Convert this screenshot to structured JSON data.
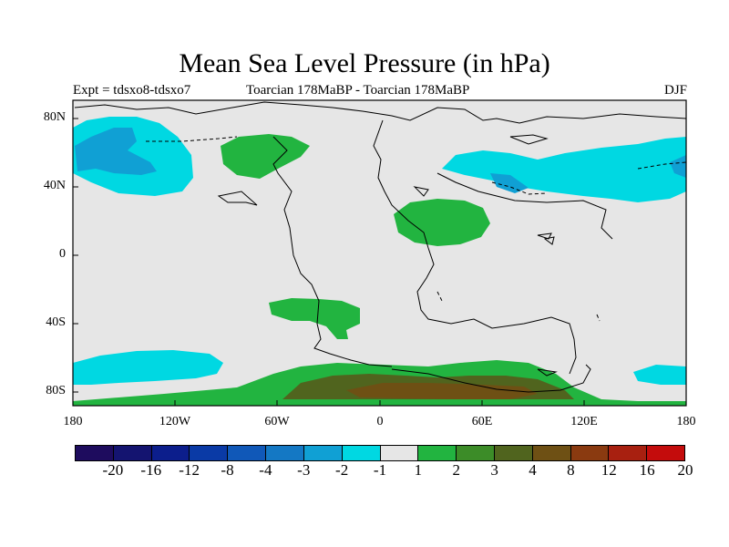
{
  "title": "Mean Sea Level Pressure (in hPa)",
  "subtitle_left": "Expt = tdsxo8-tdsxo7",
  "subtitle_center": "Toarcian 178MaBP - Toarcian 178MaBP",
  "subtitle_right": "DJF",
  "lat_ticks": [
    "80N",
    "40N",
    "0",
    "40S",
    "80S"
  ],
  "lon_ticks": [
    "180",
    "120W",
    "60W",
    "0",
    "60E",
    "120E",
    "180"
  ],
  "colorbar": {
    "labels": [
      "-20",
      "-16",
      "-12",
      "-8",
      "-4",
      "-3",
      "-2",
      "-1",
      "1",
      "2",
      "3",
      "4",
      "8",
      "12",
      "16",
      "20"
    ],
    "colors": [
      "#1e0c5e",
      "#141470",
      "#0c1e8c",
      "#0a3aa6",
      "#1058b8",
      "#1478c4",
      "#10a0d4",
      "#00d8e2",
      "#e6e6e6",
      "#22b440",
      "#3c8c28",
      "#50641e",
      "#6e5014",
      "#8a3a10",
      "#a82010",
      "#c40c0c"
    ]
  },
  "fill_colors": {
    "land_background": "#e6e6e6",
    "cyan": "#00d8e2",
    "blue": "#10a0d4",
    "green": "#22b440",
    "dark_green": "#50641e",
    "brown": "#6e5014"
  }
}
